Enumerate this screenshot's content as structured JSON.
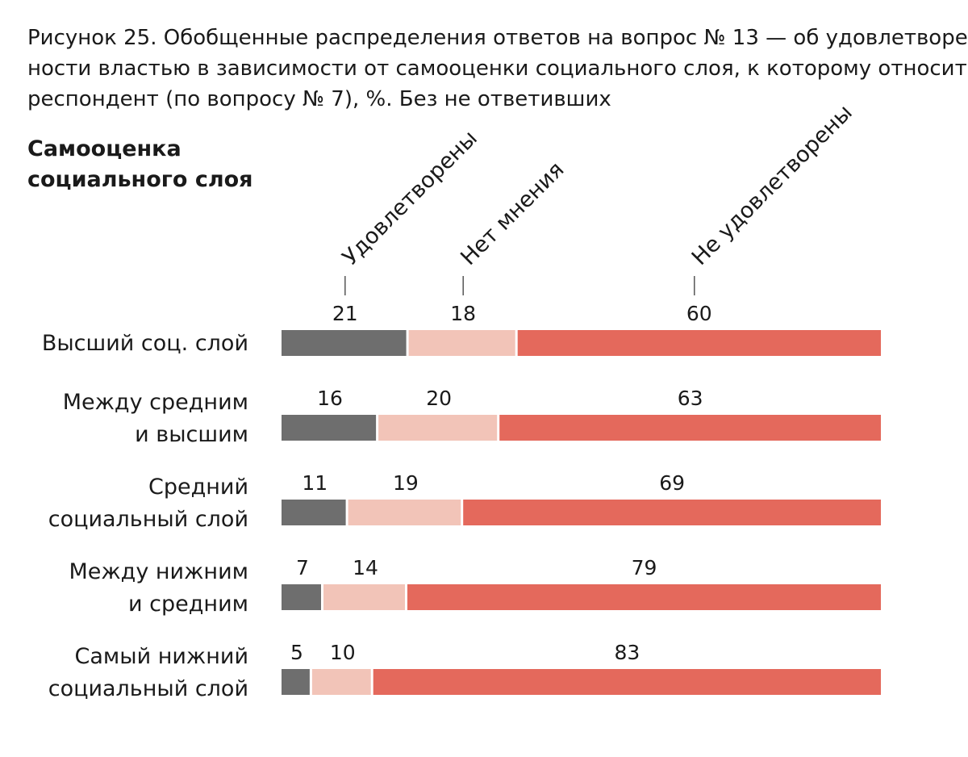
{
  "title": {
    "lines": [
      "Рисунок 25. Обобщенные распределения ответов на вопрос № 13 — об удовлетворен-",
      "ности властью в зависимости от самооценки социального слоя, к которому относится",
      "респондент (по вопросу № 7), %. Без не ответивших"
    ]
  },
  "axis_caption": {
    "lines": [
      "Самооценка",
      "социального слоя"
    ]
  },
  "colors": {
    "satisfied": "#6e6e6e",
    "no_opinion": "#f2c4b8",
    "not_satisfied": "#e4695c",
    "text": "#1a1a1a",
    "tick": "#555555"
  },
  "chart_data": {
    "type": "bar",
    "orientation": "horizontal",
    "stacked": true,
    "xlim": [
      0,
      100
    ],
    "series": [
      {
        "name": "Удовлетворены",
        "values": [
          21,
          16,
          11,
          7,
          5
        ]
      },
      {
        "name": "Нет мнения",
        "values": [
          18,
          20,
          19,
          14,
          10
        ]
      },
      {
        "name": "Не удовлетворены",
        "values": [
          60,
          63,
          69,
          79,
          83
        ]
      }
    ],
    "categories": [
      [
        "Высший соц. слой"
      ],
      [
        "Между средним",
        "и высшим"
      ],
      [
        "Средний",
        "социальный слой"
      ],
      [
        "Между нижним",
        "и средним"
      ],
      [
        "Самый нижний",
        "социальный слой"
      ]
    ]
  }
}
